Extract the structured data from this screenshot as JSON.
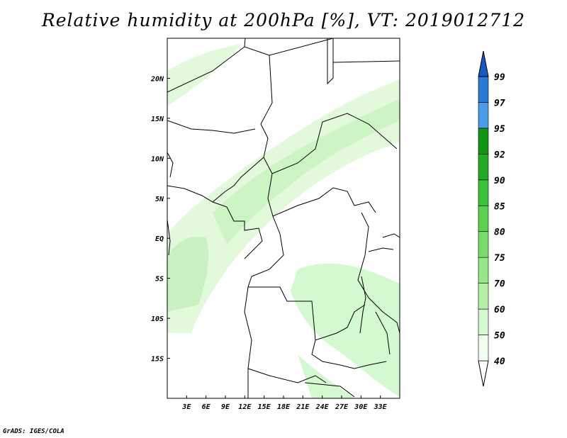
{
  "title": "Relative humidity at 200hPa [%], VT: 2019012712",
  "credit": "GrADS: IGES/COLA",
  "map": {
    "lon_range": [
      0,
      36
    ],
    "lat_range": [
      -20,
      25
    ],
    "x_ticks": [
      "3E",
      "6E",
      "9E",
      "12E",
      "15E",
      "18E",
      "21E",
      "24E",
      "27E",
      "30E",
      "33E"
    ],
    "y_ticks": [
      "20N",
      "15N",
      "10N",
      "5N",
      "EQ",
      "5S",
      "10S",
      "15S"
    ]
  },
  "colorbar": {
    "levels": [
      "40",
      "50",
      "60",
      "70",
      "75",
      "80",
      "85",
      "90",
      "92",
      "95",
      "97",
      "99"
    ],
    "colors": [
      "#f0fff0",
      "#d4f8d0",
      "#b4f0a8",
      "#96e68a",
      "#78dc6a",
      "#5ad250",
      "#3cc23a",
      "#22aa22",
      "#129612",
      "#4a9ce8",
      "#2a7ad8",
      "#1658c4"
    ]
  }
}
